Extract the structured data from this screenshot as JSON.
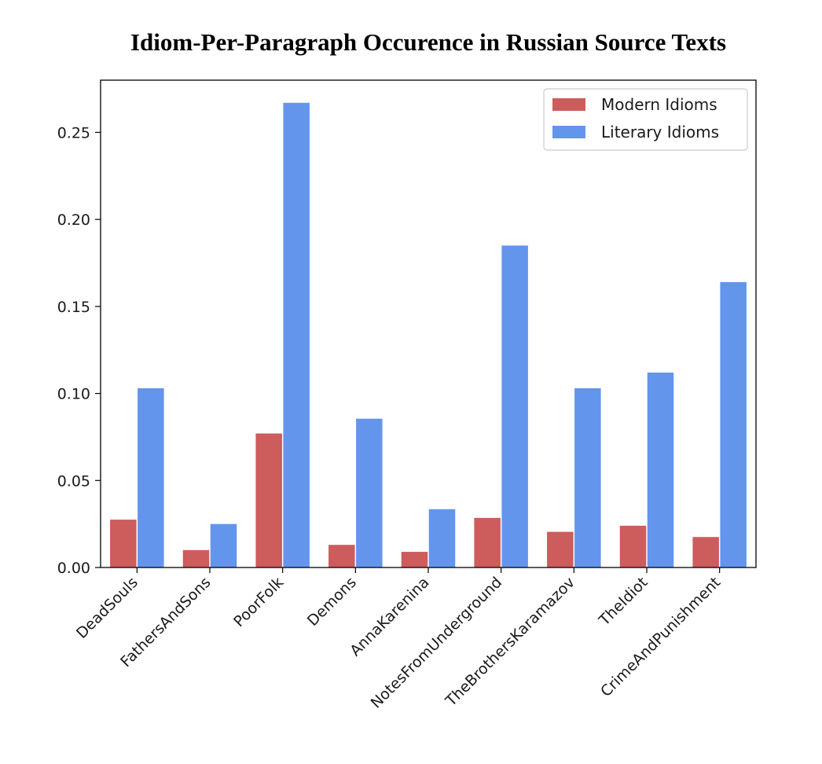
{
  "chart_data": {
    "type": "bar",
    "title": "Idiom-Per-Paragraph Occurence in Russian Source Texts",
    "xlabel": "",
    "ylabel": "",
    "categories": [
      "DeadSouls",
      "FathersAndSons",
      "PoorFolk",
      "Demons",
      "AnnaKarenina",
      "NotesFromUnderground",
      "TheBrothersKaramazov",
      "TheIdiot",
      "CrimeAndPunishment"
    ],
    "series": [
      {
        "name": "Modern Idioms",
        "color": "#cd5c5c",
        "values": [
          0.0275,
          0.01,
          0.077,
          0.013,
          0.009,
          0.0285,
          0.0205,
          0.024,
          0.0175
        ]
      },
      {
        "name": "Literary Idioms",
        "color": "#6495ed",
        "values": [
          0.103,
          0.025,
          0.267,
          0.0855,
          0.0335,
          0.185,
          0.103,
          0.112,
          0.164
        ]
      }
    ],
    "ylim": [
      0,
      0.28
    ],
    "yticks": [
      "0.00",
      "0.05",
      "0.10",
      "0.15",
      "0.20",
      "0.25"
    ],
    "legend_position": "top-right",
    "grid": false
  }
}
